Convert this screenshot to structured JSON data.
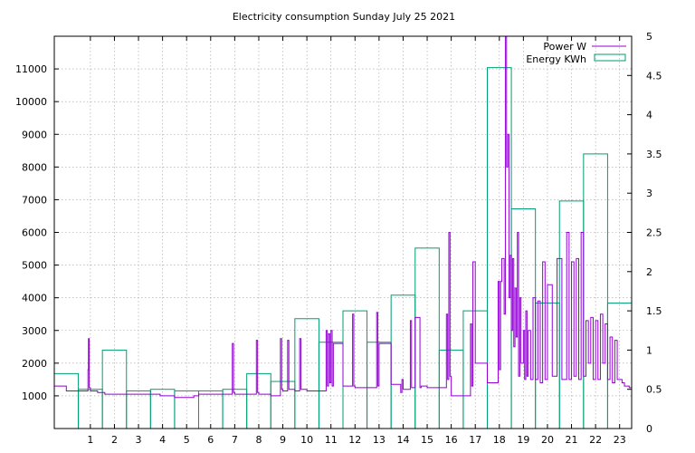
{
  "chart_data": {
    "type": "bar",
    "title": "Electricity consumption Sunday July 25 2021",
    "xlabel": "",
    "ylabel": "",
    "xlim": [
      -0.5,
      23.5
    ],
    "ylim": [
      0,
      12000
    ],
    "y2lim": [
      0,
      5
    ],
    "grid": true,
    "legend_position": "top-right",
    "x_ticks": [
      1,
      2,
      3,
      4,
      5,
      6,
      7,
      8,
      9,
      10,
      11,
      12,
      13,
      14,
      15,
      16,
      17,
      18,
      19,
      20,
      21,
      22,
      23
    ],
    "y_ticks": [
      1000,
      2000,
      3000,
      4000,
      5000,
      6000,
      7000,
      8000,
      9000,
      10000,
      11000
    ],
    "y2_ticks": [
      0,
      0.5,
      1,
      1.5,
      2,
      2.5,
      3,
      3.5,
      4,
      4.5,
      5
    ],
    "y2_tick_labels": [
      "0",
      "0.5",
      "1",
      "1.5",
      "2",
      "2.5",
      "3",
      "3.5",
      "4",
      "4.5",
      "5"
    ],
    "series": [
      {
        "name": "Power W",
        "type": "line",
        "axis": "y1",
        "color": "#9400d3",
        "x": [
          -0.5,
          0.0,
          0.5,
          0.9,
          0.92,
          0.95,
          1.0,
          1.3,
          1.6,
          2.0,
          2.5,
          3.0,
          3.5,
          3.9,
          4.1,
          4.5,
          5.0,
          5.3,
          5.5,
          6.0,
          6.5,
          6.9,
          6.95,
          7.0,
          7.5,
          7.9,
          7.95,
          8.0,
          8.5,
          8.9,
          8.95,
          9.0,
          9.2,
          9.25,
          9.5,
          9.7,
          9.75,
          10.0,
          10.5,
          10.8,
          10.85,
          10.9,
          10.95,
          11.0,
          11.05,
          11.1,
          11.5,
          11.9,
          11.95,
          12.0,
          12.5,
          12.9,
          12.95,
          13.0,
          13.5,
          13.9,
          13.95,
          14.0,
          14.3,
          14.35,
          14.5,
          14.7,
          14.75,
          15.0,
          15.5,
          15.8,
          15.85,
          15.9,
          15.95,
          16.0,
          16.5,
          16.8,
          16.85,
          16.9,
          17.0,
          17.5,
          17.9,
          17.95,
          18.0,
          18.05,
          18.1,
          18.2,
          18.25,
          18.3,
          18.35,
          18.4,
          18.45,
          18.5,
          18.55,
          18.6,
          18.65,
          18.7,
          18.75,
          18.8,
          18.85,
          18.9,
          19.0,
          19.05,
          19.1,
          19.15,
          19.2,
          19.3,
          19.4,
          19.5,
          19.6,
          19.7,
          19.8,
          19.9,
          20.0,
          20.2,
          20.4,
          20.6,
          20.8,
          20.9,
          21.0,
          21.1,
          21.2,
          21.3,
          21.4,
          21.5,
          21.6,
          21.7,
          21.8,
          21.9,
          22.0,
          22.1,
          22.2,
          22.3,
          22.4,
          22.5,
          22.6,
          22.7,
          22.8,
          22.9,
          23.0,
          23.1,
          23.2,
          23.3,
          23.4,
          23.5
        ],
        "values": [
          1300,
          1150,
          1150,
          1800,
          2750,
          1250,
          1150,
          1100,
          1050,
          1050,
          1050,
          1050,
          1050,
          1000,
          1000,
          950,
          950,
          1000,
          1050,
          1050,
          1050,
          2600,
          1100,
          1050,
          1050,
          2700,
          1100,
          1050,
          1000,
          2750,
          1200,
          1150,
          2700,
          1200,
          1150,
          2750,
          1200,
          1150,
          1150,
          3000,
          1300,
          2900,
          1400,
          3000,
          1300,
          2600,
          1300,
          3500,
          1300,
          1250,
          1250,
          3550,
          1300,
          2600,
          1350,
          1100,
          1500,
          1200,
          3300,
          1250,
          3400,
          1250,
          1300,
          1250,
          1250,
          3500,
          1500,
          6000,
          1600,
          1000,
          1000,
          3200,
          1300,
          5100,
          2000,
          1400,
          1400,
          4500,
          1800,
          4500,
          5200,
          3500,
          12000,
          8000,
          9000,
          4000,
          5300,
          3000,
          5200,
          2500,
          4300,
          2800,
          6000,
          1600,
          4000,
          2000,
          3000,
          1500,
          3600,
          1600,
          3000,
          1500,
          4000,
          1500,
          3900,
          1400,
          5100,
          1500,
          4400,
          1600,
          5200,
          1500,
          6000,
          1500,
          5100,
          1600,
          5200,
          1500,
          6000,
          1600,
          3300,
          2000,
          3400,
          1500,
          3300,
          1500,
          3500,
          2000,
          3200,
          1500,
          2800,
          1400,
          2700,
          1500,
          1500,
          1400,
          1300,
          1300,
          1250,
          1250
        ],
        "draw": "hold"
      },
      {
        "name": "Energy KWh",
        "type": "bar",
        "axis": "y2",
        "color": "#009e73",
        "categories": [
          0,
          1,
          2,
          3,
          4,
          5,
          6,
          7,
          8,
          9,
          10,
          11,
          12,
          13,
          14,
          15,
          16,
          17,
          18,
          19,
          20,
          21,
          22,
          23
        ],
        "values": [
          0.7,
          0.5,
          1.0,
          0.48,
          0.5,
          0.48,
          0.48,
          0.5,
          0.7,
          0.6,
          1.4,
          1.1,
          1.5,
          1.1,
          1.7,
          2.3,
          1.0,
          1.5,
          4.6,
          2.8,
          1.6,
          2.9,
          3.5,
          1.6
        ]
      }
    ]
  }
}
